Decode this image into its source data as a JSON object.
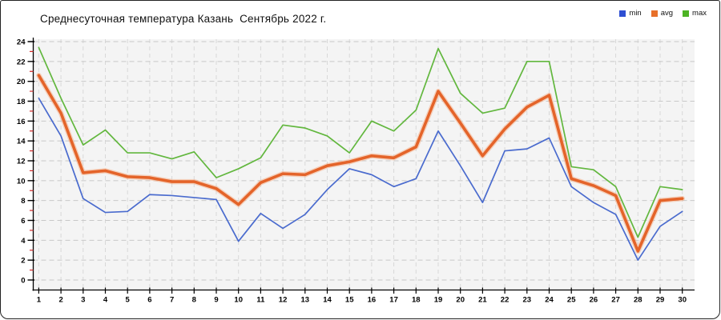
{
  "chart_data": {
    "type": "line",
    "title": "Среднесуточная температура Казань  Сентябрь 2022 г.",
    "xlabel": "",
    "ylabel": "",
    "x": [
      1,
      2,
      3,
      4,
      5,
      6,
      7,
      8,
      9,
      10,
      11,
      12,
      13,
      14,
      15,
      16,
      17,
      18,
      19,
      20,
      21,
      22,
      23,
      24,
      25,
      26,
      27,
      28,
      29,
      30
    ],
    "ylim": [
      0,
      24
    ],
    "yticks": [
      0,
      2,
      4,
      6,
      8,
      10,
      12,
      14,
      16,
      18,
      20,
      22,
      24
    ],
    "grid": "dashed",
    "legend_position": "top-right",
    "plot_bg_color": "#f4f4f4",
    "minor_tick_color": "#d42a2a",
    "series": [
      {
        "name": "min",
        "swatch_color": "#2e4fd2",
        "line_color": "#4a6bce",
        "values": [
          18.3,
          14.5,
          8.2,
          6.8,
          6.9,
          8.6,
          8.5,
          8.3,
          8.1,
          3.9,
          6.7,
          5.2,
          6.6,
          9.1,
          11.2,
          10.6,
          9.4,
          10.2,
          15.0,
          11.5,
          7.8,
          13.0,
          13.2,
          14.3,
          9.4,
          7.8,
          6.6,
          2.0,
          5.4,
          6.9
        ]
      },
      {
        "name": "avg",
        "swatch_color": "#e8702a",
        "line_color": "#e4642a",
        "halo_color": "#f5ad85",
        "values": [
          20.6,
          16.8,
          10.8,
          11.0,
          10.4,
          10.3,
          9.9,
          9.9,
          9.2,
          7.6,
          9.8,
          10.7,
          10.6,
          11.5,
          11.9,
          12.5,
          12.3,
          13.4,
          19.0,
          15.8,
          12.5,
          15.2,
          17.4,
          18.6,
          10.2,
          9.5,
          8.5,
          2.9,
          8.0,
          8.2
        ]
      },
      {
        "name": "max",
        "swatch_color": "#4db324",
        "line_color": "#62b73e",
        "values": [
          23.4,
          18.3,
          13.6,
          15.1,
          12.8,
          12.8,
          12.2,
          12.9,
          10.3,
          11.2,
          12.3,
          15.6,
          15.3,
          14.5,
          12.8,
          16.0,
          15.0,
          17.1,
          23.3,
          18.8,
          16.8,
          17.3,
          22.0,
          22.0,
          11.4,
          11.1,
          9.4,
          4.3,
          9.4,
          9.1
        ]
      }
    ]
  }
}
